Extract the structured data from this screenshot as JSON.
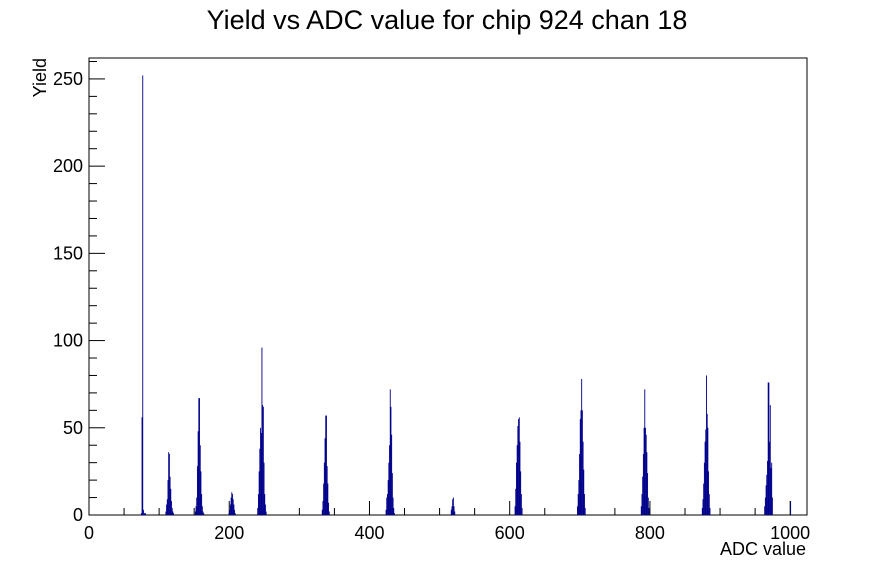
{
  "chart_data": {
    "type": "histogram",
    "title": "Yield vs ADC value for chip 924 chan 18",
    "xlabel": "ADC value",
    "ylabel": "Yield",
    "xlim": [
      0,
      1024
    ],
    "ylim": [
      0,
      262
    ],
    "xticks": [
      0,
      200,
      400,
      600,
      800,
      1000
    ],
    "yticks": [
      0,
      50,
      100,
      150,
      200,
      250
    ],
    "grid": false,
    "legend": "none",
    "series": [
      {
        "color": "#00008b",
        "x": [
          74,
          75,
          76,
          77,
          78,
          79,
          80,
          109,
          110,
          111,
          112,
          113,
          114,
          115,
          116,
          117,
          118,
          119,
          120,
          151,
          152,
          153,
          154,
          155,
          156,
          157,
          158,
          159,
          160,
          161,
          162,
          163,
          199,
          200,
          201,
          202,
          203,
          204,
          205,
          206,
          207,
          208,
          240,
          241,
          242,
          243,
          244,
          245,
          246,
          247,
          248,
          249,
          250,
          251,
          252,
          332,
          333,
          334,
          335,
          336,
          337,
          338,
          339,
          340,
          341,
          342,
          423,
          424,
          425,
          426,
          427,
          428,
          429,
          430,
          431,
          432,
          433,
          434,
          435,
          516,
          517,
          518,
          519,
          520,
          521,
          607,
          608,
          609,
          610,
          611,
          612,
          613,
          614,
          615,
          616,
          617,
          696,
          697,
          698,
          699,
          700,
          701,
          702,
          703,
          704,
          705,
          706,
          707,
          787,
          788,
          789,
          790,
          791,
          792,
          793,
          794,
          795,
          796,
          797,
          798,
          874,
          875,
          876,
          877,
          878,
          879,
          880,
          881,
          882,
          883,
          884,
          885,
          963,
          964,
          965,
          966,
          967,
          968,
          969,
          970,
          971,
          972,
          973,
          974,
          1000
        ],
        "values": [
          1,
          56,
          252,
          3,
          1,
          1,
          1,
          2,
          6,
          9,
          20,
          36,
          35,
          22,
          15,
          8,
          4,
          2,
          1,
          2,
          5,
          10,
          28,
          48,
          67,
          67,
          40,
          25,
          12,
          5,
          2,
          1,
          1,
          3,
          6,
          10,
          13,
          12,
          9,
          6,
          3,
          1,
          4,
          12,
          25,
          38,
          50,
          47,
          96,
          63,
          62,
          30,
          12,
          6,
          2,
          3,
          8,
          18,
          30,
          44,
          57,
          57,
          28,
          18,
          7,
          2,
          3,
          10,
          12,
          20,
          30,
          40,
          72,
          62,
          46,
          24,
          10,
          4,
          1,
          3,
          5,
          9,
          10,
          5,
          2,
          5,
          15,
          30,
          40,
          51,
          55,
          56,
          42,
          25,
          12,
          4,
          5,
          12,
          20,
          35,
          55,
          60,
          78,
          60,
          42,
          26,
          12,
          4,
          5,
          12,
          22,
          35,
          50,
          72,
          50,
          46,
          36,
          24,
          10,
          4,
          4,
          9,
          18,
          30,
          42,
          49,
          80,
          58,
          50,
          25,
          12,
          4,
          5,
          10,
          17,
          23,
          31,
          76,
          76,
          42,
          63,
          27,
          30,
          10,
          8
        ]
      }
    ]
  }
}
